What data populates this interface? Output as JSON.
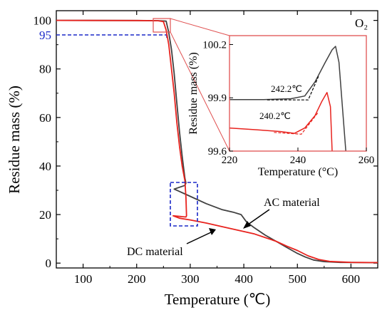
{
  "chart_data": [
    {
      "type": "line",
      "panel": "main",
      "title": "",
      "xlabel": "Temperature (℃)",
      "ylabel": "Residue mass (%)",
      "xlim": [
        50,
        650
      ],
      "ylim": [
        -2,
        104
      ],
      "xticks": [
        "100",
        "200",
        "300",
        "400",
        "500",
        "600"
      ],
      "yticks": [
        "0",
        "20",
        "40",
        "60",
        "80",
        "100"
      ],
      "legend_label": "O₂",
      "series": [
        {
          "name": "AC material",
          "color": "#404040",
          "points": [
            [
              50,
              100
            ],
            [
              200,
              99.95
            ],
            [
              240,
              99.9
            ],
            [
              255,
              99.7
            ],
            [
              260,
              95
            ],
            [
              265,
              88
            ],
            [
              270,
              78
            ],
            [
              275,
              66
            ],
            [
              280,
              54
            ],
            [
              285,
              44
            ],
            [
              290,
              35
            ],
            [
              292,
              33
            ],
            [
              290,
              32
            ],
            [
              270,
              30.5
            ],
            [
              280,
              29.5
            ],
            [
              300,
              27.5
            ],
            [
              330,
              24.5
            ],
            [
              360,
              22
            ],
            [
              380,
              21
            ],
            [
              395,
              20
            ],
            [
              405,
              17
            ],
            [
              420,
              14.5
            ],
            [
              440,
              11.5
            ],
            [
              460,
              9
            ],
            [
              480,
              6.5
            ],
            [
              500,
              4
            ],
            [
              515,
              2.5
            ],
            [
              530,
              1.3
            ],
            [
              550,
              0.6
            ],
            [
              580,
              0.3
            ],
            [
              650,
              0.2
            ]
          ]
        },
        {
          "name": "DC material",
          "color": "#e8231e",
          "points": [
            [
              50,
              100
            ],
            [
              200,
              99.95
            ],
            [
              240,
              99.85
            ],
            [
              250,
              99.5
            ],
            [
              255,
              96
            ],
            [
              260,
              90
            ],
            [
              265,
              80
            ],
            [
              270,
              70
            ],
            [
              275,
              58
            ],
            [
              280,
              48
            ],
            [
              285,
              40
            ],
            [
              290,
              34
            ],
            [
              292,
              27
            ],
            [
              293,
              19.5
            ],
            [
              292,
              19
            ],
            [
              268,
              19.5
            ],
            [
              280,
              18.5
            ],
            [
              300,
              17.8
            ],
            [
              330,
              16.5
            ],
            [
              360,
              15
            ],
            [
              400,
              13
            ],
            [
              420,
              12
            ],
            [
              440,
              10.5
            ],
            [
              460,
              9
            ],
            [
              480,
              7
            ],
            [
              500,
              5.2
            ],
            [
              520,
              3
            ],
            [
              540,
              1.5
            ],
            [
              560,
              0.7
            ],
            [
              600,
              0.3
            ],
            [
              650,
              0.2
            ]
          ]
        }
      ],
      "reference_line": {
        "y": 95,
        "label": "95",
        "color": "#1a28c8"
      },
      "annotations": [
        "AC material",
        "DC material"
      ]
    },
    {
      "type": "line",
      "panel": "inset",
      "title": "",
      "xlabel": "Temperature (°C)",
      "ylabel": "Residue mass (%)",
      "xlim": [
        220,
        260
      ],
      "ylim": [
        99.6,
        100.25
      ],
      "xticks": [
        "220",
        "240",
        "260"
      ],
      "yticks": [
        "99.6",
        "99.9",
        "100.2"
      ],
      "series": [
        {
          "name": "AC material",
          "color": "#404040",
          "points": [
            [
              220,
              99.89
            ],
            [
              230,
              99.89
            ],
            [
              238,
              99.895
            ],
            [
              242,
              99.91
            ],
            [
              245,
              99.99
            ],
            [
              248,
              100.1
            ],
            [
              250,
              100.17
            ],
            [
              251,
              100.19
            ],
            [
              252,
              100.1
            ],
            [
              253,
              99.85
            ],
            [
              254,
              99.6
            ]
          ]
        },
        {
          "name": "DC material",
          "color": "#e8231e",
          "points": [
            [
              220,
              99.73
            ],
            [
              228,
              99.72
            ],
            [
              235,
              99.71
            ],
            [
              239,
              99.7
            ],
            [
              242,
              99.73
            ],
            [
              245,
              99.8
            ],
            [
              247,
              99.88
            ],
            [
              248.5,
              99.93
            ],
            [
              249.5,
              99.85
            ],
            [
              250,
              99.6
            ]
          ]
        }
      ],
      "tangents": [
        {
          "color": "#000000",
          "points": [
            [
              231,
              99.888
            ],
            [
              243,
              99.888
            ],
            [
              243,
              99.888
            ],
            [
              246,
              100.02
            ]
          ]
        },
        {
          "color": "#e8231e",
          "points": [
            [
              233,
              99.705
            ],
            [
              241,
              99.695
            ],
            [
              241,
              99.695
            ],
            [
              246,
              99.82
            ]
          ]
        }
      ],
      "annotations": [
        "242.2℃",
        "240.2℃"
      ]
    }
  ]
}
